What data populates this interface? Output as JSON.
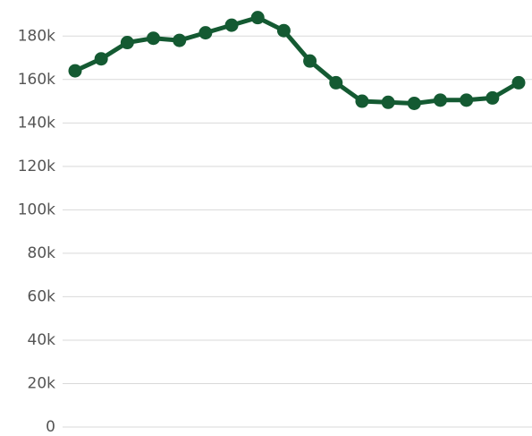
{
  "chart_data": {
    "type": "line",
    "title": "",
    "xlabel": "",
    "ylabel": "",
    "ylim": [
      0,
      190000
    ],
    "yticks": [
      {
        "value": 0,
        "label": "0"
      },
      {
        "value": 20000,
        "label": "20k"
      },
      {
        "value": 40000,
        "label": "40k"
      },
      {
        "value": 60000,
        "label": "60k"
      },
      {
        "value": 80000,
        "label": "80k"
      },
      {
        "value": 100000,
        "label": "100k"
      },
      {
        "value": 120000,
        "label": "120k"
      },
      {
        "value": 140000,
        "label": "140k"
      },
      {
        "value": 160000,
        "label": "160k"
      },
      {
        "value": 180000,
        "label": "180k"
      }
    ],
    "grid": true,
    "series": [
      {
        "color": "#145a32",
        "values": [
          164000,
          169500,
          177000,
          179000,
          178000,
          181500,
          185000,
          188500,
          182500,
          168500,
          158500,
          150000,
          149500,
          149000,
          150500,
          150500,
          151500,
          158500
        ]
      }
    ]
  }
}
